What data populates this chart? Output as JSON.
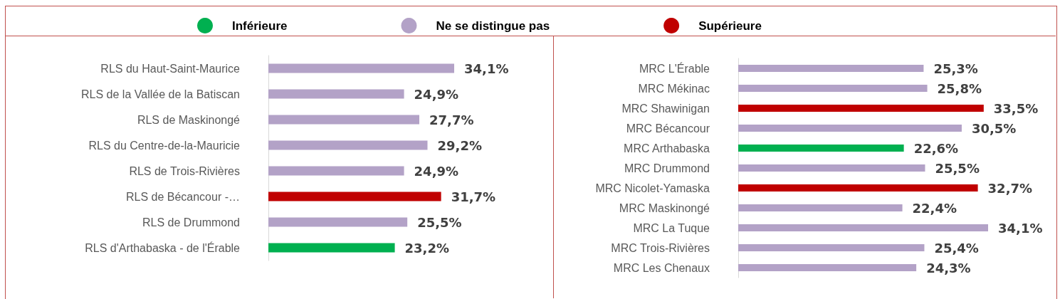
{
  "chart_data": [
    {
      "type": "bar",
      "orientation": "horizontal",
      "stacked": true,
      "legend": "top",
      "categories": [
        "RLS du Haut-Saint-Maurice",
        "RLS de la Vallée de la Batiscan",
        "RLS de Maskinongé",
        "RLS du Centre-de-la-Mauricie",
        "RLS de Trois-Rivières",
        "RLS de Bécancour -…",
        "RLS de Drummond",
        "RLS d'Arthabaska - de l'Érable"
      ],
      "series": [
        {
          "name": "Inférieure",
          "color": "#00b050",
          "values": [
            null,
            null,
            null,
            null,
            null,
            null,
            null,
            23.2
          ],
          "value_labels": [
            null,
            null,
            null,
            null,
            null,
            null,
            null,
            "23,2%"
          ]
        },
        {
          "name": "Ne se distingue pas",
          "color": "#b3a2c7",
          "values": [
            34.1,
            24.9,
            27.7,
            29.2,
            24.9,
            null,
            25.5,
            null
          ],
          "value_labels": [
            "34,1%",
            "24,9%",
            "27,7%",
            "29,2%",
            "24,9%",
            null,
            "25,5%",
            null
          ]
        },
        {
          "name": "Supérieure",
          "color": "#c00000",
          "values": [
            null,
            null,
            null,
            null,
            null,
            31.7,
            null,
            null
          ],
          "value_labels": [
            null,
            null,
            null,
            null,
            null,
            "31,7%",
            null,
            null
          ]
        }
      ]
    },
    {
      "type": "bar",
      "orientation": "horizontal",
      "stacked": true,
      "categories": [
        "MRC L'Érable",
        "MRC Mékinac",
        "MRC Shawinigan",
        "MRC Bécancour",
        "MRC Arthabaska",
        "MRC Drummond",
        "MRC Nicolet-Yamaska",
        "MRC Maskinongé",
        "MRC La Tuque",
        "MRC Trois-Rivières",
        "MRC Les Chenaux"
      ],
      "series": [
        {
          "color": "#00b050",
          "values": [
            null,
            null,
            null,
            null,
            22.6,
            null,
            null,
            null,
            null,
            null,
            null
          ],
          "value_labels": [
            null,
            null,
            null,
            null,
            "22,6%",
            null,
            null,
            null,
            null,
            null,
            null
          ]
        },
        {
          "color": "#b3a2c7",
          "values": [
            25.3,
            25.8,
            null,
            30.5,
            null,
            25.5,
            null,
            22.4,
            34.1,
            25.4,
            24.3
          ],
          "value_labels": [
            "25,3%",
            "25,8%",
            null,
            "30,5%",
            null,
            "25,5%",
            null,
            "22,4%",
            "34,1%",
            "25,4%",
            "24,3%"
          ]
        },
        {
          "color": "#c00000",
          "values": [
            null,
            null,
            33.5,
            null,
            null,
            null,
            32.7,
            null,
            null,
            null,
            null
          ],
          "value_labels": [
            null,
            null,
            "33,5%",
            null,
            null,
            null,
            "32,7%",
            null,
            null,
            null,
            null
          ]
        }
      ]
    }
  ]
}
